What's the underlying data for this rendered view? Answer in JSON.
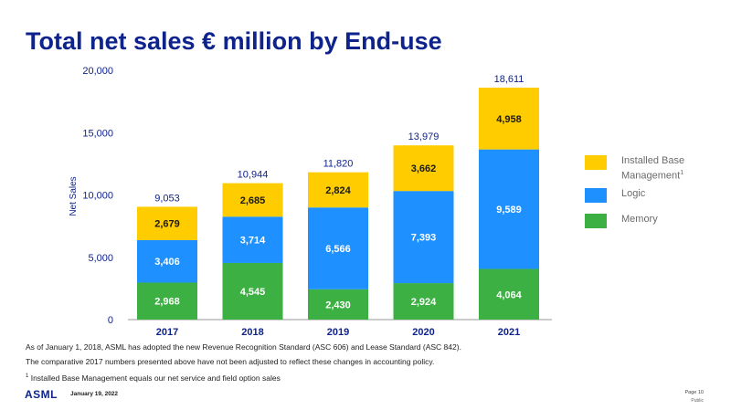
{
  "title": "Total net sales € million by End-use",
  "chart_data": {
    "type": "bar",
    "stacked": true,
    "categories": [
      "2017",
      "2018",
      "2019",
      "2020",
      "2021"
    ],
    "series": [
      {
        "name": "Memory",
        "values": [
          2968,
          4545,
          2430,
          2924,
          4064
        ],
        "color": "#3cb043"
      },
      {
        "name": "Logic",
        "values": [
          3406,
          3714,
          6566,
          7393,
          9589
        ],
        "color": "#1e90ff"
      },
      {
        "name": "Installed Base Management",
        "values": [
          2679,
          2685,
          2824,
          3662,
          4958
        ],
        "color": "#ffcc00"
      }
    ],
    "totals": [
      9053,
      10944,
      11820,
      13979,
      18611
    ],
    "value_labels": [
      [
        "2,968",
        "4,545",
        "2,430",
        "2,924",
        "4,064"
      ],
      [
        "3,406",
        "3,714",
        "6,566",
        "7,393",
        "9,589"
      ],
      [
        "2,679",
        "2,685",
        "2,824",
        "3,662",
        "4,958"
      ]
    ],
    "total_labels": [
      "9,053",
      "10,944",
      "11,820",
      "13,979",
      "18,611"
    ],
    "ylabel": "Net Sales",
    "ylim": [
      0,
      20000
    ],
    "yticks": [
      0,
      5000,
      10000,
      15000,
      20000
    ],
    "ytick_labels": [
      "0",
      "5,000",
      "10,000",
      "15,000",
      "20,000"
    ],
    "grid": false,
    "legend_position": "right"
  },
  "legend": {
    "ibm": {
      "label": "Installed Base Management",
      "footnote": "1"
    },
    "logic": {
      "label": "Logic"
    },
    "memory": {
      "label": "Memory"
    }
  },
  "colors": {
    "title": "#0f238c",
    "memory": "#3cb043",
    "logic": "#1e90ff",
    "ibm": "#ffcc00"
  },
  "notes": {
    "line1": "As of January 1, 2018, ASML has adopted the new Revenue Recognition Standard (ASC 606) and Lease Standard (ASC 842).",
    "line2": "The comparative 2017 numbers presented above have not been adjusted to reflect these changes in accounting policy.",
    "footnote_marker": "1",
    "line3": " Installed Base Management equals our net service and field option sales"
  },
  "footer": {
    "logo": "ASML",
    "date": "January 19, 2022",
    "page": "Page 10",
    "classification": "Public"
  }
}
